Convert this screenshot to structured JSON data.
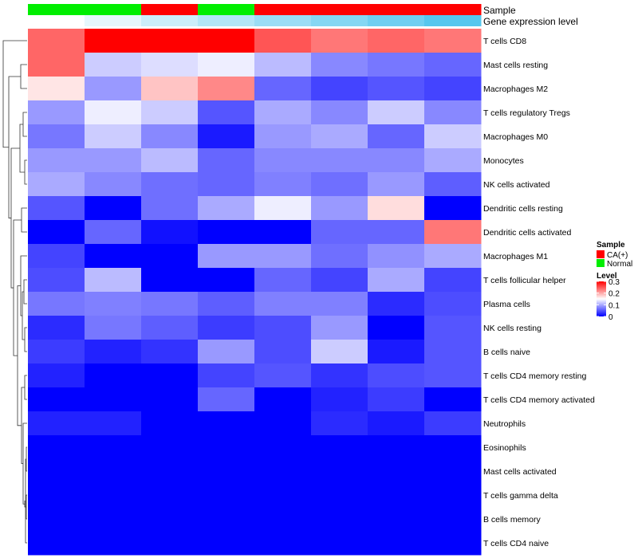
{
  "chart_data": {
    "type": "heatmap",
    "title": "",
    "annotation_labels": {
      "sample": "Sample",
      "gene": "Gene expression level"
    },
    "samples": {
      "groups": [
        "Normal",
        "Normal",
        "CA(+)",
        "Normal",
        "CA(+)",
        "CA(+)",
        "CA(+)",
        "CA(+)"
      ],
      "colors": {
        "CA(+)": "#ff0000",
        "Normal": "#00ee00"
      }
    },
    "gene_expression": {
      "values": [
        0.0,
        0.15,
        0.3,
        0.45,
        0.6,
        0.72,
        0.85,
        1.0
      ],
      "low_color": "#ffffff",
      "high_color": "#56c7ee"
    },
    "rows": [
      "T cells CD8",
      "Mast cells resting",
      "Macrophages M2",
      "T cells regulatory  Tregs",
      "Macrophages M0",
      "Monocytes",
      "NK cells activated",
      "Dendritic cells resting",
      "Dendritic cells activated",
      "Macrophages M1",
      "T cells follicular helper",
      "Plasma cells",
      "NK cells resting",
      "B cells naive",
      "T cells CD4 memory resting",
      "T cells CD4 memory activated",
      "Neutrophils",
      "Eosinophils",
      "Mast cells activated",
      "T cells gamma delta",
      "B cells memory",
      "T cells CD4 naive"
    ],
    "values": [
      [
        0.24,
        0.3,
        0.3,
        0.3,
        0.25,
        0.23,
        0.24,
        0.23
      ],
      [
        0.24,
        0.12,
        0.13,
        0.14,
        0.11,
        0.08,
        0.07,
        0.06
      ],
      [
        0.165,
        0.09,
        0.185,
        0.22,
        0.06,
        0.04,
        0.05,
        0.04
      ],
      [
        0.09,
        0.14,
        0.12,
        0.05,
        0.1,
        0.08,
        0.12,
        0.08
      ],
      [
        0.07,
        0.12,
        0.08,
        0.015,
        0.09,
        0.1,
        0.06,
        0.12
      ],
      [
        0.09,
        0.09,
        0.11,
        0.06,
        0.08,
        0.08,
        0.08,
        0.1
      ],
      [
        0.1,
        0.08,
        0.065,
        0.06,
        0.075,
        0.065,
        0.09,
        0.055
      ],
      [
        0.05,
        0.0,
        0.065,
        0.1,
        0.14,
        0.09,
        0.17,
        0.0
      ],
      [
        0.0,
        0.06,
        0.01,
        0.0,
        0.0,
        0.06,
        0.06,
        0.23
      ],
      [
        0.04,
        0.0,
        0.0,
        0.09,
        0.09,
        0.065,
        0.085,
        0.1
      ],
      [
        0.045,
        0.11,
        0.0,
        0.0,
        0.06,
        0.04,
        0.1,
        0.04
      ],
      [
        0.07,
        0.075,
        0.07,
        0.055,
        0.075,
        0.075,
        0.025,
        0.045
      ],
      [
        0.025,
        0.07,
        0.055,
        0.035,
        0.045,
        0.09,
        0.0,
        0.05
      ],
      [
        0.035,
        0.02,
        0.03,
        0.09,
        0.045,
        0.12,
        0.015,
        0.05
      ],
      [
        0.02,
        0.0,
        0.0,
        0.04,
        0.05,
        0.03,
        0.045,
        0.05
      ],
      [
        0.0,
        0.0,
        0.0,
        0.06,
        0.0,
        0.02,
        0.035,
        0.0
      ],
      [
        0.02,
        0.02,
        0.0,
        0.0,
        0.0,
        0.025,
        0.015,
        0.035
      ],
      [
        0.0,
        0.0,
        0.0,
        0.0,
        0.0,
        0.0,
        0.0,
        0.0
      ],
      [
        0.0,
        0.0,
        0.0,
        0.0,
        0.0,
        0.0,
        0.0,
        0.0
      ],
      [
        0.0,
        0.0,
        0.0,
        0.0,
        0.0,
        0.0,
        0.0,
        0.0
      ],
      [
        0.0,
        0.0,
        0.0,
        0.0,
        0.0,
        0.0,
        0.0,
        0.0
      ],
      [
        0.0,
        0.0,
        0.0,
        0.0,
        0.0,
        0.0,
        0.0,
        0.0
      ]
    ],
    "color_scale": {
      "min": 0,
      "max": 0.3,
      "stops": [
        "#0000ff",
        "#ffffff",
        "#ff0000"
      ]
    },
    "legend": {
      "position": "right",
      "sample_title": "Sample",
      "sample_entries": [
        {
          "label": "CA(+)",
          "color": "#ff0000"
        },
        {
          "label": "Normal",
          "color": "#00ee00"
        }
      ],
      "level_title": "Level",
      "level_ticks": [
        {
          "value": 0.3,
          "label": "0.3"
        },
        {
          "value": 0.2,
          "label": "0.2"
        },
        {
          "value": 0.1,
          "label": "0.1"
        },
        {
          "value": 0,
          "label": "0"
        }
      ]
    },
    "dendrogram": "rows"
  }
}
